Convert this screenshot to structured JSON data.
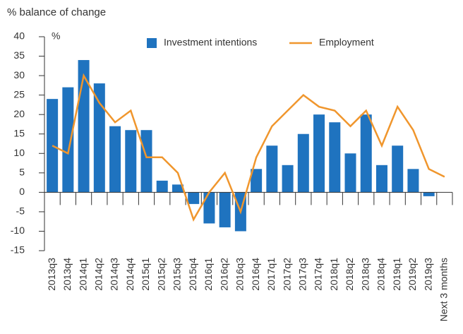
{
  "chart_data": {
    "type": "bar_line",
    "ylabel": "% balance of change",
    "unit_label": "%",
    "categories": [
      "2013q3",
      "2013q4",
      "2014q1",
      "2014q2",
      "2014q3",
      "2014q4",
      "2015q1",
      "2015q2",
      "2015q3",
      "2015q4",
      "2016q1",
      "2016q2",
      "2016q3",
      "2016q4",
      "2017q1",
      "2017q2",
      "2017q3",
      "2017q4",
      "2018q1",
      "2018q2",
      "2018q3",
      "2018q4",
      "2019q1",
      "2019q2",
      "2019q3",
      "Next 3 months"
    ],
    "series": [
      {
        "name": "Investment intentions",
        "type": "bar",
        "color": "#1f73bf",
        "values": [
          24,
          27,
          34,
          28,
          17,
          16,
          16,
          3,
          2,
          -3,
          -8,
          -9,
          -10,
          6,
          12,
          7,
          15,
          20,
          18,
          10,
          20,
          7,
          12,
          6,
          -1,
          null
        ]
      },
      {
        "name": "Employment",
        "type": "line",
        "color": "#f0962d",
        "values": [
          12,
          10,
          30,
          23,
          18,
          21,
          9,
          9,
          5,
          -7,
          0,
          5,
          -5,
          9,
          17,
          21,
          25,
          22,
          21,
          17,
          21,
          12,
          22,
          16,
          6,
          4
        ]
      }
    ],
    "ylim": [
      -15,
      40
    ],
    "yticks": [
      -15,
      -10,
      -5,
      0,
      5,
      10,
      15,
      20,
      25,
      30,
      35,
      40
    ]
  }
}
